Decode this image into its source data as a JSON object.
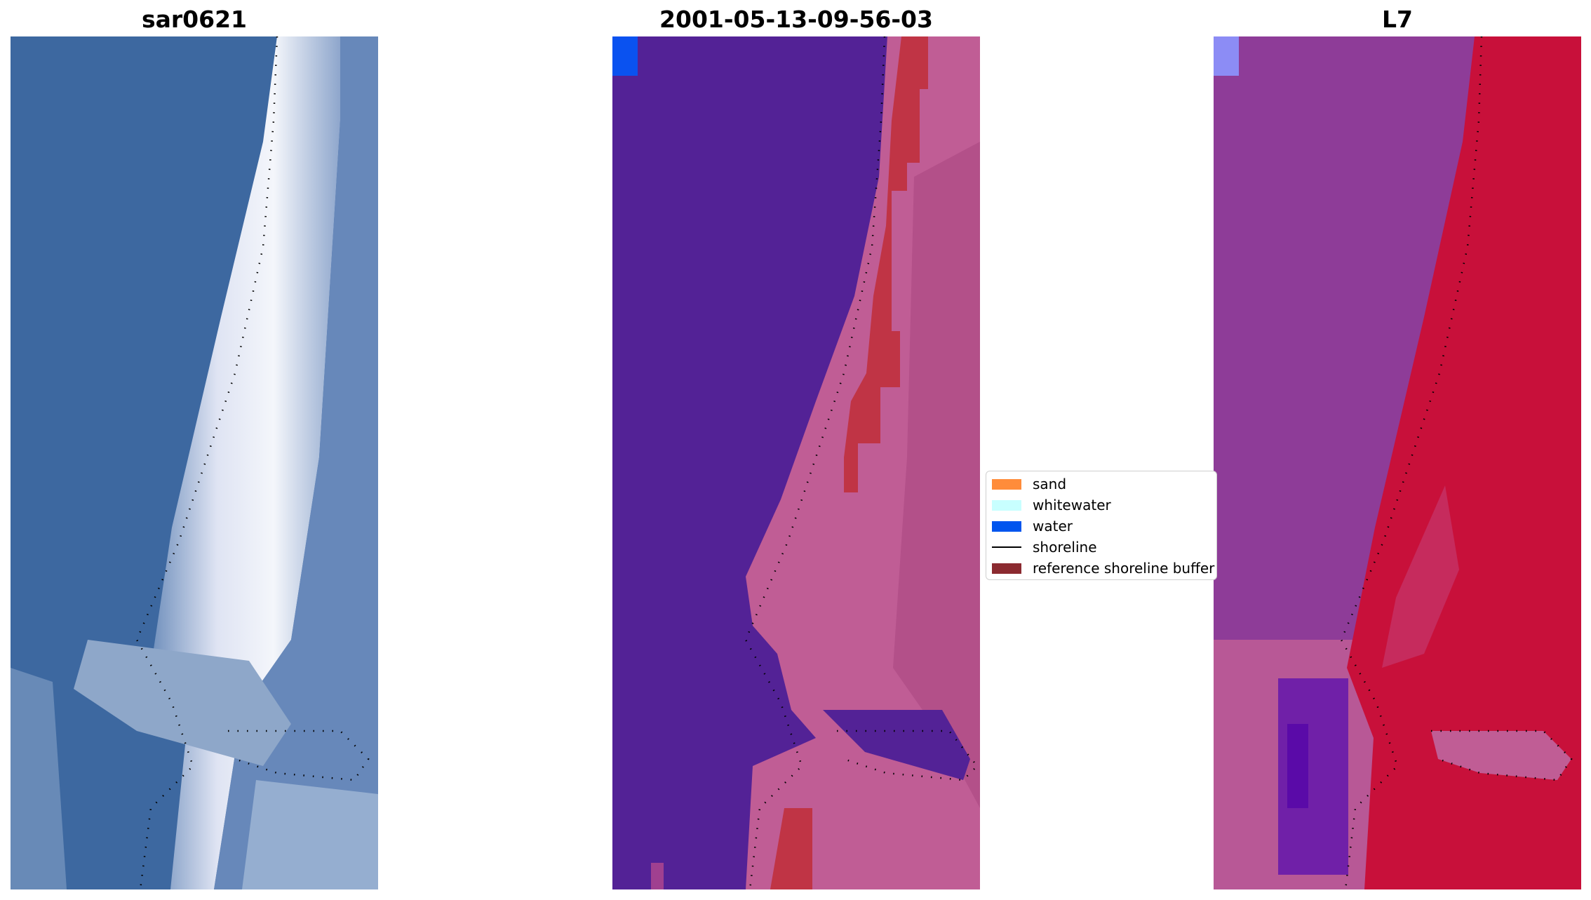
{
  "panels": [
    {
      "title": "sar0621",
      "kind": "rgb"
    },
    {
      "title": "2001-05-13-09-56-03",
      "kind": "classified"
    },
    {
      "title": "L7",
      "kind": "index"
    }
  ],
  "legend": {
    "items": [
      {
        "label": "sand",
        "type": "patch",
        "color": "#ff8c3a"
      },
      {
        "label": "whitewater",
        "type": "patch",
        "color": "#c8ffff"
      },
      {
        "label": "water",
        "type": "patch",
        "color": "#0055ee"
      },
      {
        "label": "shoreline",
        "type": "line",
        "color": "#000000"
      },
      {
        "label": "reference shoreline buffer",
        "type": "patch",
        "color": "#8b2a30"
      }
    ]
  },
  "colors": {
    "rgb_water": "#3f6aa0",
    "rgb_sand": "#eaeef6",
    "classified_water": "#532296",
    "classified_land": "#c05d95",
    "classified_buffer": "#c03445",
    "index_water": "#8e3c98",
    "index_land": "#c8103a",
    "shoreline_dots": "#000000"
  }
}
